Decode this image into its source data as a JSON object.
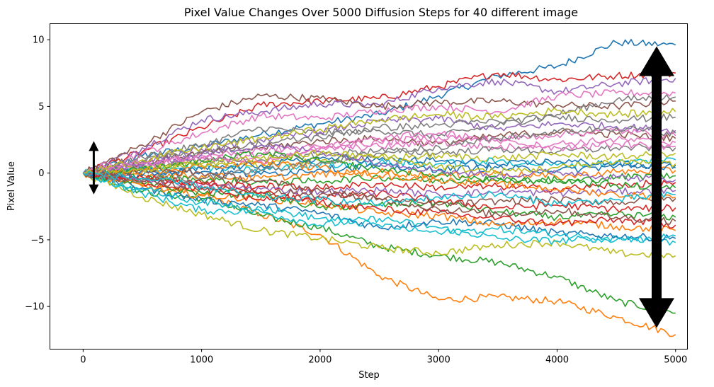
{
  "chart_data": {
    "type": "line",
    "title": "Pixel Value Changes Over 5000 Diffusion Steps for 40 different image",
    "xlabel": "Step",
    "ylabel": "Pixel Value",
    "xlim": [
      -280,
      5100
    ],
    "ylim": [
      -13.2,
      11.2
    ],
    "xticks": [
      0,
      1000,
      2000,
      3000,
      4000,
      5000
    ],
    "yticks": [
      -10,
      -5,
      0,
      5,
      10
    ],
    "ytick_labels": [
      "−10",
      "−5",
      "0",
      "5",
      "10"
    ],
    "grid": false,
    "legend": "none",
    "palette": [
      "#1f77b4",
      "#ff7f0e",
      "#2ca02c",
      "#d62728",
      "#9467bd",
      "#8c564b",
      "#e377c2",
      "#7f7f7f",
      "#bcbd22",
      "#17becf"
    ],
    "x": [
      0,
      500,
      1000,
      1500,
      2000,
      2500,
      3000,
      3500,
      4000,
      4500,
      5000
    ],
    "series": [
      {
        "values": [
          0.0,
          1.3,
          2.0,
          2.9,
          3.7,
          4.4,
          5.8,
          7.3,
          8.0,
          9.8,
          9.6
        ]
      },
      {
        "values": [
          0.0,
          -0.9,
          -1.6,
          -3.1,
          -4.6,
          -7.7,
          -9.5,
          -9.3,
          -9.6,
          -10.8,
          -12.1
        ]
      },
      {
        "values": [
          0.0,
          -1.4,
          -1.9,
          -3.2,
          -4.1,
          -5.5,
          -6.2,
          -6.7,
          -7.8,
          -9.6,
          -10.5
        ]
      },
      {
        "values": [
          0.0,
          1.6,
          3.4,
          5.1,
          5.4,
          5.6,
          6.5,
          7.5,
          7.0,
          7.3,
          7.5
        ]
      },
      {
        "values": [
          0.0,
          1.9,
          4.0,
          4.6,
          5.2,
          5.1,
          6.4,
          6.9,
          6.1,
          6.7,
          7.1
        ]
      },
      {
        "values": [
          0.0,
          2.1,
          4.6,
          5.8,
          5.6,
          5.0,
          5.3,
          5.4,
          5.1,
          5.0,
          5.4
        ]
      },
      {
        "values": [
          0.0,
          1.5,
          3.0,
          4.3,
          4.1,
          4.7,
          5.0,
          4.6,
          5.8,
          6.0,
          6.0
        ]
      },
      {
        "values": [
          0.0,
          1.2,
          2.1,
          3.4,
          3.0,
          3.2,
          2.8,
          3.6,
          4.4,
          5.5,
          5.7
        ]
      },
      {
        "values": [
          0.0,
          -1.8,
          -3.1,
          -4.3,
          -4.9,
          -5.6,
          -6.0,
          -5.4,
          -5.2,
          -6.0,
          -6.2
        ]
      },
      {
        "values": [
          0.0,
          -1.5,
          -2.8,
          -2.9,
          -3.9,
          -3.4,
          -4.1,
          -4.9,
          -5.1,
          -4.8,
          -5.2
        ]
      },
      {
        "values": [
          0.0,
          -1.1,
          -2.0,
          -2.4,
          -3.0,
          -4.1,
          -3.6,
          -3.8,
          -4.5,
          -4.7,
          -4.9
        ]
      },
      {
        "values": [
          0.0,
          -1.0,
          -1.7,
          -1.9,
          -2.3,
          -3.0,
          -3.2,
          -3.9,
          -3.6,
          -4.0,
          -4.3
        ]
      },
      {
        "values": [
          0.0,
          -0.8,
          -1.5,
          -1.6,
          -2.6,
          -2.4,
          -2.2,
          -2.9,
          -3.3,
          -3.1,
          -3.3
        ]
      },
      {
        "values": [
          0.0,
          -0.7,
          -1.2,
          -2.0,
          -1.8,
          -1.5,
          -2.1,
          -2.6,
          -2.4,
          -2.7,
          -2.6
        ]
      },
      {
        "values": [
          0.0,
          0.9,
          1.8,
          2.5,
          3.1,
          3.9,
          4.1,
          3.3,
          3.7,
          3.5,
          3.2
        ]
      },
      {
        "values": [
          0.0,
          0.8,
          1.5,
          1.9,
          2.4,
          2.6,
          2.2,
          2.8,
          3.1,
          2.9,
          2.6
        ]
      },
      {
        "values": [
          0.0,
          0.6,
          1.1,
          1.3,
          1.8,
          2.0,
          2.3,
          1.9,
          2.2,
          2.5,
          2.3
        ]
      },
      {
        "values": [
          0.0,
          0.5,
          0.9,
          1.0,
          1.4,
          1.7,
          1.5,
          1.8,
          1.6,
          1.9,
          1.9
        ]
      },
      {
        "values": [
          0.0,
          0.4,
          0.7,
          0.6,
          0.9,
          1.2,
          1.3,
          1.1,
          1.4,
          1.2,
          1.5
        ]
      },
      {
        "values": [
          0.0,
          0.3,
          0.4,
          0.2,
          0.6,
          0.8,
          0.7,
          0.9,
          0.6,
          0.8,
          1.0
        ]
      },
      {
        "values": [
          0.0,
          0.2,
          0.1,
          -0.1,
          0.3,
          0.5,
          0.3,
          0.4,
          0.2,
          0.5,
          0.6
        ]
      },
      {
        "values": [
          0.0,
          -0.1,
          -0.2,
          -0.4,
          -0.1,
          0.1,
          -0.2,
          0.0,
          -0.3,
          0.1,
          0.2
        ]
      },
      {
        "values": [
          0.0,
          -0.3,
          -0.5,
          -0.7,
          -0.6,
          -0.3,
          -0.6,
          -0.4,
          -0.7,
          -0.3,
          -0.2
        ]
      },
      {
        "values": [
          0.0,
          -0.4,
          -0.7,
          -1.0,
          -1.1,
          -0.8,
          -1.1,
          -1.0,
          -1.2,
          -0.9,
          -0.7
        ]
      },
      {
        "values": [
          0.0,
          -0.5,
          -0.9,
          -1.2,
          -1.4,
          -1.3,
          -1.6,
          -1.4,
          -1.5,
          -1.4,
          -1.3
        ]
      },
      {
        "values": [
          0.0,
          -0.6,
          -1.1,
          -1.4,
          -1.6,
          -1.9,
          -2.4,
          -2.1,
          -2.0,
          -2.2,
          -1.9
        ]
      },
      {
        "values": [
          0.0,
          0.7,
          1.3,
          1.7,
          2.0,
          2.3,
          2.7,
          2.5,
          2.9,
          3.2,
          2.8
        ]
      },
      {
        "values": [
          0.0,
          0.9,
          1.6,
          2.2,
          2.7,
          3.4,
          3.6,
          3.9,
          4.2,
          4.0,
          4.2
        ]
      },
      {
        "values": [
          0.0,
          1.0,
          1.9,
          2.6,
          3.3,
          4.0,
          4.4,
          4.2,
          4.7,
          4.4,
          4.6
        ]
      },
      {
        "values": [
          0.0,
          -1.2,
          -2.2,
          -2.6,
          -3.4,
          -3.9,
          -4.5,
          -4.2,
          -4.6,
          -5.0,
          -4.7
        ]
      },
      {
        "values": [
          0.0,
          -0.2,
          0.3,
          0.6,
          1.1,
          1.0,
          0.9,
          0.6,
          0.9,
          0.7,
          0.4
        ]
      },
      {
        "values": [
          0.0,
          0.1,
          0.5,
          0.8,
          0.4,
          -0.2,
          -0.5,
          -0.8,
          -1.2,
          -1.6,
          -1.8
        ]
      },
      {
        "values": [
          0.0,
          0.4,
          0.9,
          1.5,
          0.9,
          0.3,
          -0.1,
          -0.6,
          -0.5,
          -0.9,
          -1.1
        ]
      },
      {
        "values": [
          0.0,
          -0.3,
          -0.8,
          -1.5,
          -2.2,
          -2.7,
          -3.0,
          -3.4,
          -3.8,
          -3.5,
          -3.9
        ]
      },
      {
        "values": [
          0.0,
          0.6,
          1.4,
          2.1,
          1.6,
          0.8,
          0.2,
          -0.2,
          0.1,
          -0.3,
          -0.5
        ]
      },
      {
        "values": [
          0.0,
          0.2,
          0.0,
          -0.6,
          -1.3,
          -1.9,
          -2.7,
          -3.1,
          -2.8,
          -3.3,
          -3.6
        ]
      },
      {
        "values": [
          0.0,
          0.8,
          1.2,
          0.9,
          1.9,
          2.6,
          3.0,
          2.4,
          1.9,
          2.2,
          2.0
        ]
      },
      {
        "values": [
          0.0,
          -0.5,
          -0.4,
          0.2,
          0.8,
          1.5,
          2.0,
          2.6,
          3.1,
          3.4,
          3.0
        ]
      },
      {
        "values": [
          0.0,
          0.3,
          0.6,
          1.1,
          1.5,
          1.2,
          0.5,
          0.1,
          0.4,
          0.9,
          0.7
        ]
      },
      {
        "values": [
          0.0,
          -0.4,
          -1.0,
          -1.8,
          -2.0,
          -2.3,
          -1.8,
          -1.6,
          -2.3,
          -2.0,
          -1.6
        ]
      }
    ],
    "annotations": [
      {
        "name": "small-spread-arrow",
        "x": 90,
        "y_from": -1.6,
        "y_to": 2.4
      },
      {
        "name": "large-spread-arrow",
        "x": 4840,
        "y_from": -11.6,
        "y_to": 9.5
      }
    ]
  }
}
